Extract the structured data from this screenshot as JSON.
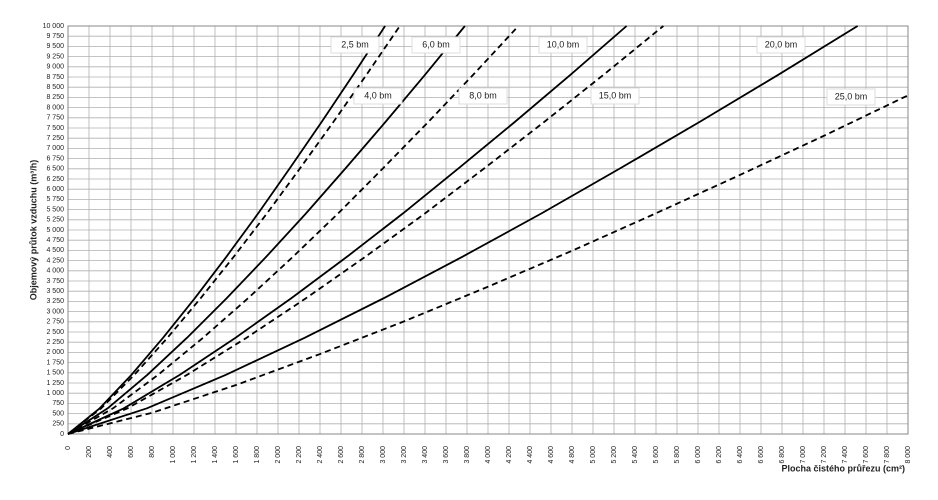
{
  "chart_data": {
    "type": "line",
    "x_label": "Plocha čistého průřezu (cm²)",
    "y_label": "Objemový průtok vzduchu (m³/h)",
    "xlim": [
      0,
      8000
    ],
    "ylim": [
      0,
      10000
    ],
    "grid": true,
    "xticks": [
      0,
      200,
      400,
      600,
      800,
      {
        "value": 1000,
        "label": "1 000"
      },
      {
        "value": 1200,
        "label": "1 200"
      },
      {
        "value": 1400,
        "label": "1 400"
      },
      {
        "value": 1600,
        "label": "1 600"
      },
      {
        "value": 1800,
        "label": "1 800"
      },
      {
        "value": 2000,
        "label": "2 000"
      },
      {
        "value": 2200,
        "label": "2 200"
      },
      {
        "value": 2400,
        "label": "2 400"
      },
      {
        "value": 2600,
        "label": "2 600"
      },
      {
        "value": 2800,
        "label": "2 800"
      },
      {
        "value": 3000,
        "label": "3 000"
      },
      {
        "value": 3200,
        "label": "3 200"
      },
      {
        "value": 3400,
        "label": "3 400"
      },
      {
        "value": 3600,
        "label": "3 600"
      },
      {
        "value": 3800,
        "label": "3 800"
      },
      {
        "value": 4000,
        "label": "4 000"
      },
      {
        "value": 4200,
        "label": "4 200"
      },
      {
        "value": 4400,
        "label": "4 400"
      },
      {
        "value": 4600,
        "label": "4 600"
      },
      {
        "value": 4800,
        "label": "4 800"
      },
      {
        "value": 5000,
        "label": "5 000"
      },
      {
        "value": 5200,
        "label": "5 200"
      },
      {
        "value": 5400,
        "label": "5 400"
      },
      {
        "value": 5600,
        "label": "5 600"
      },
      {
        "value": 5800,
        "label": "5 800"
      },
      {
        "value": 6000,
        "label": "6 000"
      },
      {
        "value": 6200,
        "label": "6 200"
      },
      {
        "value": 6400,
        "label": "6 400"
      },
      {
        "value": 6600,
        "label": "6 600"
      },
      {
        "value": 6800,
        "label": "6 800"
      },
      {
        "value": 7000,
        "label": "7 000"
      },
      {
        "value": 7200,
        "label": "7 200"
      },
      {
        "value": 7400,
        "label": "7 400"
      },
      {
        "value": 7600,
        "label": "7 600"
      },
      {
        "value": 7800,
        "label": "7 800"
      },
      {
        "value": 8000,
        "label": "8 000"
      }
    ],
    "yticks": [
      0,
      250,
      500,
      750,
      {
        "value": 1000,
        "label": "1 000"
      },
      {
        "value": 1250,
        "label": "1 250"
      },
      {
        "value": 1500,
        "label": "1 500"
      },
      {
        "value": 1750,
        "label": "1 750"
      },
      {
        "value": 2000,
        "label": "2 000"
      },
      {
        "value": 2250,
        "label": "2 250"
      },
      {
        "value": 2500,
        "label": "2 500"
      },
      {
        "value": 2750,
        "label": "2 750"
      },
      {
        "value": 3000,
        "label": "3 000"
      },
      {
        "value": 3250,
        "label": "3 250"
      },
      {
        "value": 3500,
        "label": "3 500"
      },
      {
        "value": 3750,
        "label": "3 750"
      },
      {
        "value": 4000,
        "label": "4 000"
      },
      {
        "value": 4250,
        "label": "4 250"
      },
      {
        "value": 4500,
        "label": "4 500"
      },
      {
        "value": 4750,
        "label": "4 750"
      },
      {
        "value": 5000,
        "label": "5 000"
      },
      {
        "value": 5250,
        "label": "5 250"
      },
      {
        "value": 5500,
        "label": "5 500"
      },
      {
        "value": 5750,
        "label": "5 750"
      },
      {
        "value": 6000,
        "label": "6 000"
      },
      {
        "value": 6250,
        "label": "6 250"
      },
      {
        "value": 6500,
        "label": "6 500"
      },
      {
        "value": 6750,
        "label": "6 750"
      },
      {
        "value": 7000,
        "label": "7 000"
      },
      {
        "value": 7250,
        "label": "7 250"
      },
      {
        "value": 7500,
        "label": "7 500"
      },
      {
        "value": 7750,
        "label": "7 750"
      },
      {
        "value": 8000,
        "label": "8 000"
      },
      {
        "value": 8250,
        "label": "8 250"
      },
      {
        "value": 8500,
        "label": "8 500"
      },
      {
        "value": 8750,
        "label": "8 750"
      },
      {
        "value": 9000,
        "label": "9 000"
      },
      {
        "value": 9250,
        "label": "9 250"
      },
      {
        "value": 9500,
        "label": "9 500"
      },
      {
        "value": 9750,
        "label": "9 750"
      },
      {
        "value": 10000,
        "label": "10 000"
      }
    ],
    "series": [
      {
        "name": "2,5 bm",
        "color": "#000000",
        "dash": "solid",
        "x": [
          0,
          302,
          604,
          906,
          1208,
          1510,
          1812,
          2114,
          2416,
          2718,
          3020
        ],
        "values": [
          0,
          630,
          1450,
          2360,
          3330,
          4350,
          5410,
          6520,
          7650,
          8810,
          10000
        ]
      },
      {
        "name": "4,0 bm",
        "color": "#000000",
        "dash": "dashed",
        "x": [
          0,
          316,
          632,
          948,
          1264,
          1580,
          1896,
          2212,
          2528,
          2844,
          3160
        ],
        "values": [
          0,
          630,
          1450,
          2360,
          3330,
          4350,
          5410,
          6520,
          7650,
          8810,
          10000
        ]
      },
      {
        "name": "6,0 bm",
        "color": "#000000",
        "dash": "solid",
        "x": [
          0,
          378,
          756,
          1134,
          1512,
          1890,
          2268,
          2646,
          3024,
          3402,
          3780
        ],
        "values": [
          0,
          630,
          1450,
          2360,
          3330,
          4350,
          5410,
          6520,
          7650,
          8810,
          10000
        ]
      },
      {
        "name": "8,0 bm",
        "color": "#000000",
        "dash": "dashed",
        "x": [
          0,
          429,
          858,
          1287,
          1716,
          2145,
          2574,
          3003,
          3432,
          3861,
          4290
        ],
        "values": [
          0,
          630,
          1450,
          2360,
          3330,
          4350,
          5410,
          6520,
          7650,
          8810,
          10000
        ]
      },
      {
        "name": "10,0 bm",
        "color": "#000000",
        "dash": "solid",
        "x": [
          0,
          532,
          1064,
          1596,
          2128,
          2660,
          3192,
          3724,
          4256,
          4788,
          5320
        ],
        "values": [
          0,
          630,
          1450,
          2360,
          3330,
          4350,
          5410,
          6520,
          7650,
          8810,
          10000
        ]
      },
      {
        "name": "15,0 bm",
        "color": "#000000",
        "dash": "dashed",
        "x": [
          0,
          567,
          1134,
          1701,
          2268,
          2835,
          3402,
          3969,
          4536,
          5103,
          5670
        ],
        "values": [
          0,
          630,
          1450,
          2360,
          3330,
          4350,
          5410,
          6520,
          7650,
          8810,
          10000
        ]
      },
      {
        "name": "20,0 bm",
        "color": "#000000",
        "dash": "solid",
        "x": [
          0,
          752,
          1504,
          2256,
          3008,
          3760,
          4512,
          5264,
          6016,
          6768,
          7520
        ],
        "values": [
          0,
          630,
          1450,
          2360,
          3330,
          4350,
          5410,
          6520,
          7650,
          8810,
          10000
        ]
      },
      {
        "name": "25,0 bm",
        "color": "#000000",
        "dash": "dashed",
        "x": [
          0,
          800,
          1600,
          2400,
          3200,
          4000,
          4800,
          5600,
          6400,
          7200,
          8000
        ],
        "values": [
          0,
          520,
          1200,
          1960,
          2760,
          3610,
          4490,
          5410,
          6350,
          7310,
          8300
        ]
      }
    ]
  }
}
